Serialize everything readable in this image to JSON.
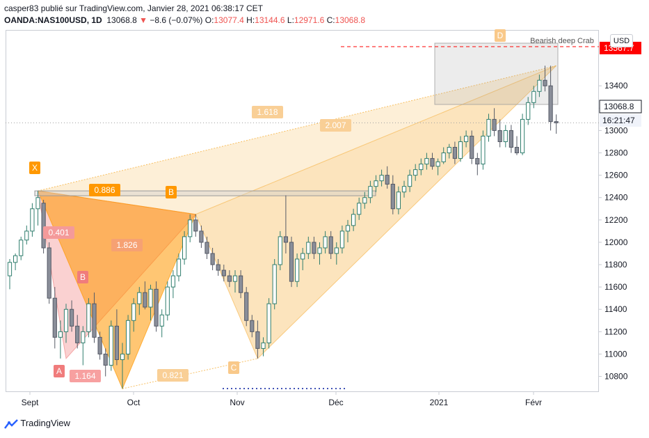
{
  "header": {
    "line1": "casper83 publié sur TradingView.com, Janvier 28, 2021 06:38:17 CET",
    "symbol": "OANDA:NAS100USD, 1D",
    "last": "13068.8",
    "arrow": "▼",
    "change": "−8.6 (−0.07%)",
    "o_label": "O:",
    "o_value": "13077.4",
    "h_label": "H:",
    "h_value": "13144.6",
    "l_label": "L:",
    "l_value": "12971.6",
    "c_label": "C:",
    "c_value": "13068.8"
  },
  "currency_button": "USD",
  "price_tags": {
    "current": "13068.8",
    "countdown": "16:21:47",
    "target": "13567.7"
  },
  "footer": {
    "brand": "TradingView"
  },
  "pattern": {
    "name": "Bearish deep Crab",
    "points": {
      "X": "X",
      "A": "A",
      "B": "B",
      "C": "C",
      "D": "D"
    },
    "ratios": [
      "0.886",
      "0.401",
      "1.826",
      "1.164",
      "0.821",
      "1.618",
      "2.007"
    ]
  },
  "colors": {
    "up": "#26a69a",
    "down": "#ef5350",
    "orange": "#ff9800",
    "pattern_orange": "#f5a623",
    "pattern_red": "#f07c7c",
    "price_red": "#ff0000",
    "countdown_bg": "#f0f3fa"
  },
  "chart_data": {
    "type": "candlestick",
    "title": "",
    "xlabel": "",
    "ylabel": "",
    "ylim": [
      10660,
      13900
    ],
    "y_ticks": [
      10800,
      11000,
      11200,
      11400,
      11600,
      11800,
      12000,
      12200,
      12400,
      12600,
      12800,
      13000,
      13200,
      13400
    ],
    "x_ticks": [
      "Sept",
      "Oct",
      "Nov",
      "Déc",
      "2021",
      "Févr"
    ],
    "pattern_points": [
      {
        "label": "X",
        "date_index": 5,
        "value": 12460
      },
      {
        "label": "A",
        "date_index": 10,
        "value": 10960
      },
      {
        "label": "B",
        "date_index": 33,
        "value": 12250
      },
      {
        "label": "C",
        "date_index": 44,
        "value": 10960
      },
      {
        "label": "D",
        "date_index": 97,
        "value": 13580
      }
    ],
    "candles_ohlc": [
      [
        11700,
        11850,
        11580,
        11820
      ],
      [
        11820,
        11900,
        11750,
        11880
      ],
      [
        11880,
        12050,
        11840,
        12020
      ],
      [
        12020,
        12150,
        11980,
        12100
      ],
      [
        12100,
        12350,
        12050,
        12300
      ],
      [
        12300,
        12460,
        12150,
        12400
      ],
      [
        12350,
        12380,
        11900,
        11950
      ],
      [
        11950,
        12000,
        11450,
        11500
      ],
      [
        11500,
        11600,
        11050,
        11150
      ],
      [
        11150,
        11300,
        10960,
        11200
      ],
      [
        11200,
        11450,
        11100,
        11400
      ],
      [
        11400,
        11480,
        11200,
        11250
      ],
      [
        11250,
        11350,
        11050,
        11100
      ],
      [
        11100,
        11250,
        10900,
        11200
      ],
      [
        11200,
        11500,
        11150,
        11450
      ],
      [
        11450,
        11550,
        11100,
        11150
      ],
      [
        11150,
        11200,
        10950,
        11000
      ],
      [
        11000,
        11050,
        10800,
        10900
      ],
      [
        10900,
        11300,
        10850,
        11250
      ],
      [
        11250,
        11400,
        10900,
        10950
      ],
      [
        10950,
        11100,
        10690,
        11000
      ],
      [
        11000,
        11350,
        10950,
        11300
      ],
      [
        11300,
        11500,
        11200,
        11450
      ],
      [
        11450,
        11600,
        11350,
        11550
      ],
      [
        11550,
        11650,
        11400,
        11420
      ],
      [
        11420,
        11620,
        11300,
        11580
      ],
      [
        11580,
        11650,
        11200,
        11250
      ],
      [
        11250,
        11400,
        11150,
        11350
      ],
      [
        11350,
        11650,
        11300,
        11600
      ],
      [
        11600,
        11750,
        11500,
        11700
      ],
      [
        11700,
        11900,
        11650,
        11850
      ],
      [
        11850,
        12100,
        11800,
        12050
      ],
      [
        12050,
        12250,
        12000,
        12200
      ],
      [
        12200,
        12250,
        12050,
        12100
      ],
      [
        12100,
        12150,
        11950,
        12000
      ],
      [
        12000,
        12050,
        11850,
        11900
      ],
      [
        11900,
        11950,
        11750,
        11800
      ],
      [
        11800,
        11850,
        11700,
        11750
      ],
      [
        11750,
        11800,
        11650,
        11700
      ],
      [
        11700,
        11750,
        11600,
        11650
      ],
      [
        11650,
        11750,
        11550,
        11700
      ],
      [
        11700,
        11750,
        11500,
        11550
      ],
      [
        11550,
        11600,
        11250,
        11300
      ],
      [
        11300,
        11350,
        11150,
        11200
      ],
      [
        11200,
        11300,
        10960,
        11050
      ],
      [
        11050,
        11150,
        10980,
        11100
      ],
      [
        11100,
        11500,
        11050,
        11450
      ],
      [
        11450,
        11850,
        11400,
        11800
      ],
      [
        11800,
        12100,
        11750,
        12050
      ],
      [
        12050,
        12420,
        11900,
        12000
      ],
      [
        12000,
        12050,
        11600,
        11650
      ],
      [
        11650,
        11900,
        11600,
        11850
      ],
      [
        11850,
        11950,
        11750,
        11900
      ],
      [
        11900,
        12050,
        11850,
        12000
      ],
      [
        12000,
        12050,
        11850,
        11900
      ],
      [
        11900,
        12000,
        11800,
        11950
      ],
      [
        11950,
        12100,
        11900,
        12050
      ],
      [
        12050,
        12100,
        11850,
        11900
      ],
      [
        11900,
        12000,
        11800,
        11950
      ],
      [
        11950,
        12150,
        11900,
        12100
      ],
      [
        12100,
        12200,
        12000,
        12150
      ],
      [
        12150,
        12300,
        12100,
        12250
      ],
      [
        12250,
        12400,
        12200,
        12350
      ],
      [
        12350,
        12450,
        12300,
        12400
      ],
      [
        12400,
        12550,
        12350,
        12500
      ],
      [
        12500,
        12600,
        12450,
        12550
      ],
      [
        12550,
        12650,
        12500,
        12600
      ],
      [
        12600,
        12680,
        12480,
        12520
      ],
      [
        12520,
        12600,
        12250,
        12300
      ],
      [
        12300,
        12500,
        12250,
        12450
      ],
      [
        12450,
        12550,
        12400,
        12500
      ],
      [
        12500,
        12650,
        12450,
        12600
      ],
      [
        12600,
        12700,
        12550,
        12650
      ],
      [
        12650,
        12750,
        12600,
        12700
      ],
      [
        12700,
        12800,
        12650,
        12750
      ],
      [
        12750,
        12800,
        12650,
        12680
      ],
      [
        12680,
        12750,
        12600,
        12720
      ],
      [
        12720,
        12850,
        12700,
        12800
      ],
      [
        12800,
        12880,
        12750,
        12850
      ],
      [
        12850,
        12900,
        12700,
        12750
      ],
      [
        12750,
        12950,
        12720,
        12900
      ],
      [
        12900,
        13000,
        12850,
        12950
      ],
      [
        12950,
        13000,
        12700,
        12750
      ],
      [
        12750,
        12800,
        12600,
        12700
      ],
      [
        12700,
        13000,
        12650,
        12950
      ],
      [
        12950,
        13150,
        12900,
        13100
      ],
      [
        13100,
        13200,
        12950,
        13000
      ],
      [
        13000,
        13100,
        12850,
        12900
      ],
      [
        12900,
        13050,
        12850,
        13000
      ],
      [
        13000,
        13050,
        12800,
        12850
      ],
      [
        12850,
        12950,
        12780,
        12800
      ],
      [
        12800,
        13150,
        12780,
        13100
      ],
      [
        13100,
        13300,
        13050,
        13250
      ],
      [
        13250,
        13400,
        13200,
        13350
      ],
      [
        13350,
        13500,
        13300,
        13450
      ],
      [
        13450,
        13580,
        13350,
        13400
      ],
      [
        13400,
        13580,
        13000,
        13080
      ],
      [
        13080,
        13144,
        12971,
        13069
      ]
    ]
  }
}
